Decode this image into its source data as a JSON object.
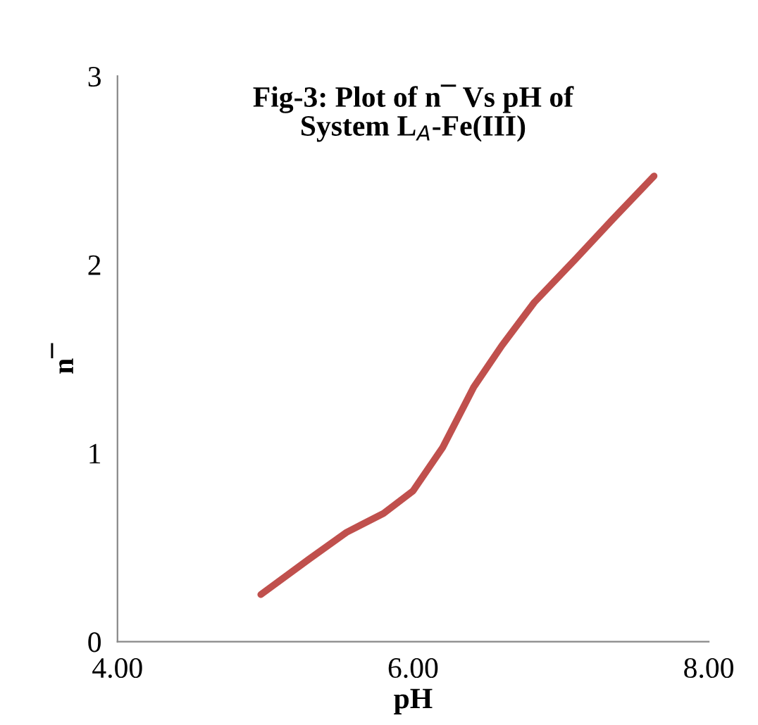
{
  "chart_data": {
    "type": "line",
    "title": "Fig-3: Plot of n¯ Vs pH of\nSystem L$_{A}$-Fe(III)",
    "xlabel": "pH",
    "ylabel": "n¯",
    "x": [
      4.97,
      5.3,
      5.55,
      5.8,
      6.0,
      6.2,
      6.41,
      6.6,
      6.82,
      7.1,
      7.35,
      7.63
    ],
    "series": [
      {
        "color": "#c0504d",
        "values": [
          0.25,
          0.44,
          0.58,
          0.68,
          0.8,
          1.03,
          1.35,
          1.57,
          1.8,
          2.03,
          2.24,
          2.47
        ]
      }
    ],
    "xlim": [
      4,
      8
    ],
    "xticks": [
      {
        "value": 4,
        "label": "4.00"
      },
      {
        "value": 6,
        "label": "6.00"
      },
      {
        "value": 8,
        "label": "8.00"
      }
    ],
    "ylim": [
      0,
      3
    ],
    "yticks": [
      0,
      1,
      2,
      3
    ],
    "grid": false,
    "legend": false,
    "marker": "none",
    "line_style": "solid"
  }
}
